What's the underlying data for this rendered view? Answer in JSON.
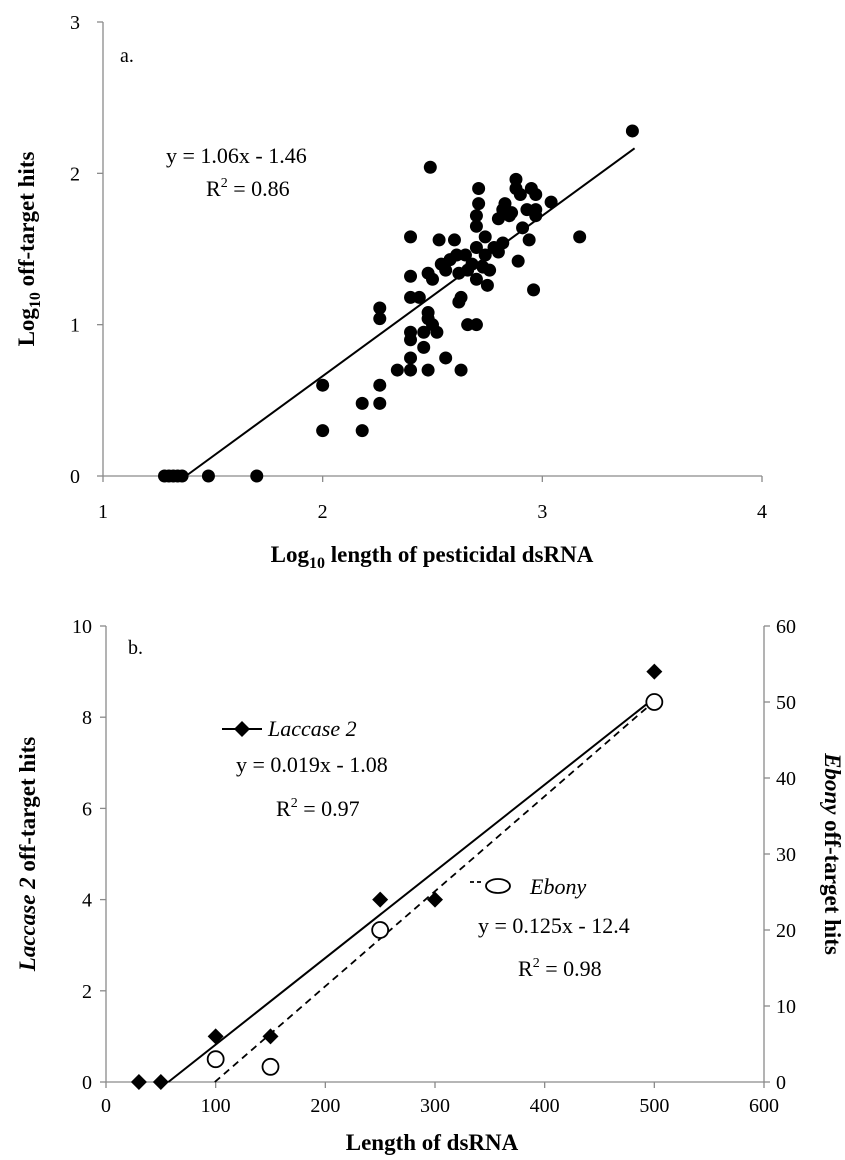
{
  "chart_data": [
    {
      "type": "scatter",
      "panel_label": "a.",
      "xlabel_main": "Log",
      "xlabel_sub": "10",
      "xlabel_rest": " length of pesticidal dsRNA",
      "ylabel_main": "Log",
      "ylabel_sub": "10",
      "ylabel_rest": " off-target hits",
      "xlim": [
        1,
        4
      ],
      "ylim": [
        0,
        3
      ],
      "xticks": [
        "1",
        "2",
        "3",
        "4"
      ],
      "yticks": [
        "0",
        "1",
        "2",
        "3"
      ],
      "equation": "y = 1.06x - 1.46",
      "r2_prefix": "R",
      "r2_sup": "2",
      "r2_rest": " = 0.86",
      "trendline": {
        "slope": 1.06,
        "intercept": -1.46
      },
      "points": [
        [
          1.28,
          0
        ],
        [
          1.3,
          0
        ],
        [
          1.32,
          0
        ],
        [
          1.34,
          0
        ],
        [
          1.36,
          0
        ],
        [
          1.48,
          0
        ],
        [
          1.7,
          0
        ],
        [
          2.0,
          0.3
        ],
        [
          2.0,
          0.6
        ],
        [
          2.18,
          0.3
        ],
        [
          2.18,
          0.48
        ],
        [
          2.26,
          0.48
        ],
        [
          2.26,
          0.6
        ],
        [
          2.26,
          1.04
        ],
        [
          2.26,
          1.11
        ],
        [
          2.34,
          0.7
        ],
        [
          2.4,
          0.7
        ],
        [
          2.4,
          0.78
        ],
        [
          2.4,
          0.9
        ],
        [
          2.4,
          0.95
        ],
        [
          2.4,
          1.18
        ],
        [
          2.4,
          1.32
        ],
        [
          2.4,
          1.58
        ],
        [
          2.44,
          1.18
        ],
        [
          2.46,
          0.85
        ],
        [
          2.46,
          0.95
        ],
        [
          2.48,
          0.7
        ],
        [
          2.48,
          1.04
        ],
        [
          2.48,
          1.08
        ],
        [
          2.48,
          1.34
        ],
        [
          2.49,
          2.04
        ],
        [
          2.5,
          1.0
        ],
        [
          2.5,
          1.3
        ],
        [
          2.52,
          0.95
        ],
        [
          2.53,
          1.56
        ],
        [
          2.54,
          1.4
        ],
        [
          2.56,
          1.36
        ],
        [
          2.56,
          0.78
        ],
        [
          2.58,
          1.43
        ],
        [
          2.6,
          1.56
        ],
        [
          2.61,
          1.46
        ],
        [
          2.62,
          1.34
        ],
        [
          2.62,
          1.15
        ],
        [
          2.63,
          0.7
        ],
        [
          2.63,
          1.18
        ],
        [
          2.65,
          1.46
        ],
        [
          2.66,
          1.0
        ],
        [
          2.66,
          1.36
        ],
        [
          2.68,
          1.4
        ],
        [
          2.7,
          1.0
        ],
        [
          2.7,
          1.3
        ],
        [
          2.7,
          1.51
        ],
        [
          2.7,
          1.65
        ],
        [
          2.7,
          1.72
        ],
        [
          2.71,
          1.8
        ],
        [
          2.71,
          1.9
        ],
        [
          2.73,
          1.38
        ],
        [
          2.74,
          1.46
        ],
        [
          2.74,
          1.58
        ],
        [
          2.75,
          1.26
        ],
        [
          2.76,
          1.36
        ],
        [
          2.78,
          1.51
        ],
        [
          2.8,
          1.48
        ],
        [
          2.8,
          1.7
        ],
        [
          2.82,
          1.54
        ],
        [
          2.82,
          1.76
        ],
        [
          2.83,
          1.8
        ],
        [
          2.85,
          1.72
        ],
        [
          2.86,
          1.74
        ],
        [
          2.88,
          1.96
        ],
        [
          2.88,
          1.9
        ],
        [
          2.89,
          1.42
        ],
        [
          2.9,
          1.86
        ],
        [
          2.91,
          1.64
        ],
        [
          2.93,
          1.76
        ],
        [
          2.94,
          1.56
        ],
        [
          2.95,
          1.9
        ],
        [
          2.96,
          1.23
        ],
        [
          2.97,
          1.72
        ],
        [
          2.97,
          1.86
        ],
        [
          2.97,
          1.76
        ],
        [
          3.04,
          1.81
        ],
        [
          3.17,
          1.58
        ],
        [
          3.41,
          2.28
        ]
      ]
    },
    {
      "type": "scatter",
      "panel_label": "b.",
      "xlabel": "Length of dsRNA",
      "ylabel_left_italic": "Laccase 2",
      "ylabel_left_rest": " off-target hits",
      "ylabel_right_italic": "Ebony",
      "ylabel_right_rest": " off-target hits",
      "xlim": [
        0,
        600
      ],
      "ylim_left": [
        0,
        10
      ],
      "ylim_right": [
        0,
        60
      ],
      "xticks": [
        "0",
        "100",
        "200",
        "300",
        "400",
        "500",
        "600"
      ],
      "yticks_left": [
        "0",
        "2",
        "4",
        "6",
        "8",
        "10"
      ],
      "yticks_right": [
        "0",
        "10",
        "20",
        "30",
        "40",
        "50",
        "60"
      ],
      "series": [
        {
          "name": "Laccase 2",
          "axis": "left",
          "marker": "diamond",
          "line": "solid",
          "x": [
            30,
            50,
            100,
            150,
            250,
            300,
            500
          ],
          "y": [
            0,
            0,
            1,
            1,
            4,
            4,
            9
          ],
          "trendline": {
            "slope": 0.019,
            "intercept": -1.08
          },
          "equation": "y = 0.019x - 1.08",
          "r2_prefix": "R",
          "r2_sup": "2",
          "r2_rest": " = 0.97"
        },
        {
          "name": "Ebony",
          "axis": "right",
          "marker": "open-circle",
          "line": "dashed",
          "x": [
            100,
            150,
            250,
            500
          ],
          "y": [
            3,
            2,
            20,
            50
          ],
          "trendline": {
            "slope": 0.125,
            "intercept": -12.4
          },
          "equation": "y = 0.125x - 12.4",
          "r2_prefix": "R",
          "r2_sup": "2",
          "r2_rest": " = 0.98"
        }
      ]
    }
  ]
}
